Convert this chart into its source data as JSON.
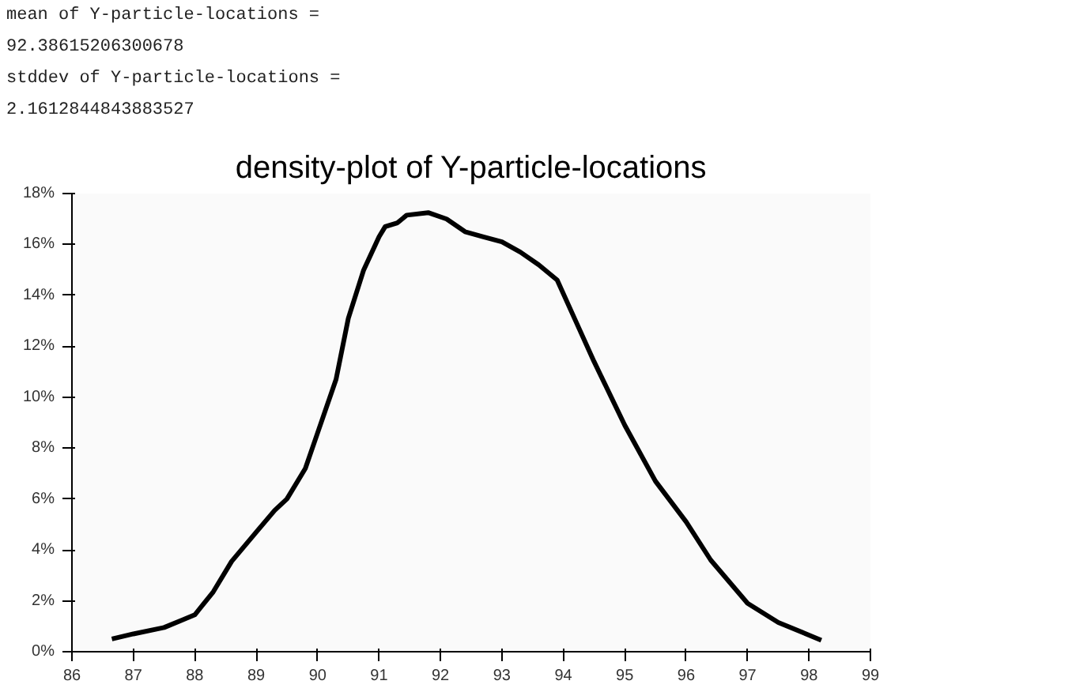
{
  "chart_data": {
    "type": "line",
    "title": "density-plot of Y-particle-locations",
    "annotations": [
      "mean of Y-particle-locations =",
      "92.38615206300678",
      "stddev of Y-particle-locations =",
      "2.1612844843883527"
    ],
    "x": [
      86.65,
      87,
      87.5,
      87.8,
      88,
      88.3,
      88.6,
      89,
      89.3,
      89.5,
      89.8,
      90,
      90.3,
      90.5,
      90.75,
      91,
      91.1,
      91.3,
      91.45,
      91.8,
      92.1,
      92.4,
      92.7,
      93,
      93.3,
      93.6,
      93.9,
      94.2,
      94.5,
      95,
      95.5,
      96,
      96.4,
      97,
      97.5,
      98.2
    ],
    "series": [
      {
        "color": "#000000",
        "values": [
          0.5,
          0.7,
          0.95,
          1.25,
          1.45,
          2.35,
          3.55,
          4.7,
          5.55,
          6.0,
          7.2,
          8.6,
          10.7,
          13.1,
          15.0,
          16.3,
          16.7,
          16.85,
          17.15,
          17.25,
          17.0,
          16.5,
          16.3,
          16.1,
          15.7,
          15.2,
          14.6,
          13.0,
          11.4,
          8.9,
          6.7,
          5.1,
          3.6,
          1.9,
          1.15,
          0.45
        ]
      }
    ],
    "xlim": [
      86,
      99
    ],
    "xticks": [
      86,
      87,
      88,
      89,
      90,
      91,
      92,
      93,
      94,
      95,
      96,
      97,
      98,
      99
    ],
    "ylim": [
      0,
      18
    ],
    "yticks": [
      {
        "value": 0,
        "label": "0%"
      },
      {
        "value": 2,
        "label": "2%"
      },
      {
        "value": 4,
        "label": "4%"
      },
      {
        "value": 6,
        "label": "6%"
      },
      {
        "value": 8,
        "label": "8%"
      },
      {
        "value": 10,
        "label": "10%"
      },
      {
        "value": 12,
        "label": "12%"
      },
      {
        "value": 14,
        "label": "14%"
      },
      {
        "value": 16,
        "label": "16%"
      },
      {
        "value": 18,
        "label": "18%"
      }
    ],
    "grid": false,
    "marker": "none",
    "line_style": "solid"
  }
}
